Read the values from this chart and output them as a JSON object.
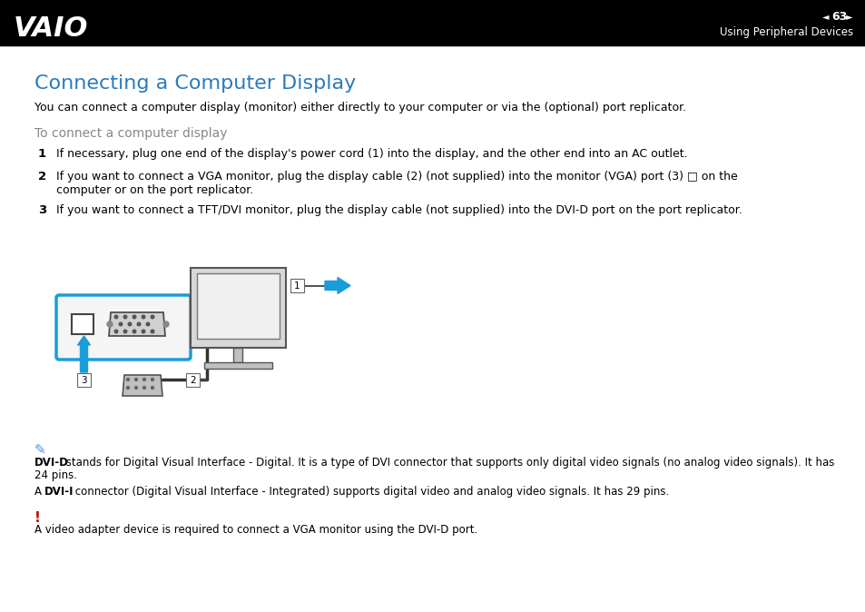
{
  "page_num": "63",
  "header_text": "Using Peripheral Devices",
  "title": "Connecting a Computer Display",
  "title_color": "#2b7bba",
  "subtitle": "You can connect a computer display (monitor) either directly to your computer or via the (optional) port replicator.",
  "section_header": "To connect a computer display",
  "section_header_color": "#888888",
  "step1": "If necessary, plug one end of the display's power cord (1) into the display, and the other end into an AC outlet.",
  "step2_line1": "If you want to connect a VGA monitor, plug the display cable (2) (not supplied) into the monitor (VGA) port (3) □ on the",
  "step2_line2": "computer or on the port replicator.",
  "step3": "If you want to connect a TFT/DVI monitor, plug the display cable (not supplied) into the DVI-D port on the port replicator.",
  "note_line1_bold": "DVI-D",
  "note_line1_rest": " stands for Digital Visual Interface - Digital. It is a type of DVI connector that supports only digital video signals (no analog video signals). It has",
  "note_line1b": "24 pins.",
  "note_line2_pre": "A ",
  "note_line2_bold": "DVI-I",
  "note_line2_rest": " connector (Digital Visual Interface - Integrated) supports digital video and analog video signals. It has 29 pins.",
  "warning_text": "A video adapter device is required to connect a VGA monitor using the DVI-D port.",
  "background_color": "#ffffff",
  "header_bg_color": "#000000",
  "header_text_color": "#ffffff",
  "arrow_color": "#1a9cd8",
  "port_box_color": "#1a9cd8",
  "note_icon_color": "#4a90d9",
  "warning_icon_color": "#cc0000"
}
